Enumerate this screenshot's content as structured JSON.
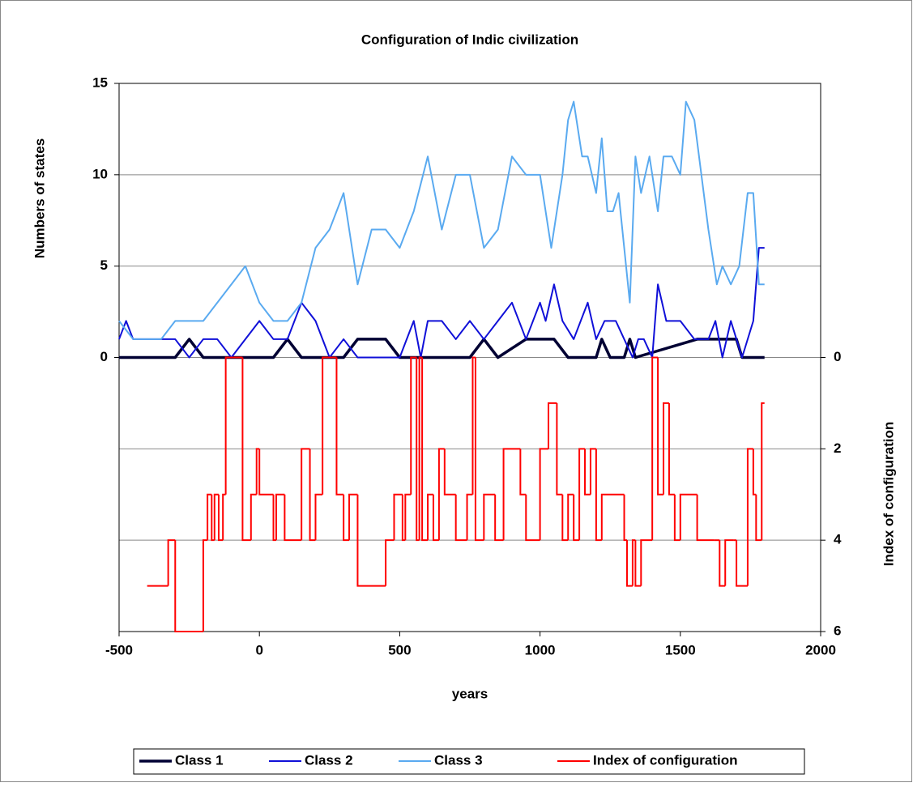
{
  "chart_data": {
    "type": "line",
    "title": "Configuration of Indic civilization",
    "x_label": "years",
    "y_label": "Numbers of states",
    "y2_label": "Index of configuration",
    "xlim": [
      -500,
      2000
    ],
    "xticks": [
      -500,
      0,
      500,
      1000,
      1500,
      2000
    ],
    "ylim": [
      -15,
      15
    ],
    "yticks": [
      0,
      5,
      10,
      15
    ],
    "y2lim": [
      6,
      -6
    ],
    "y2ticks": [
      0,
      2,
      4,
      6
    ],
    "grid": true,
    "legend": "bottom",
    "series": [
      {
        "name": "Class 1",
        "color": "#000033",
        "width": 3.5,
        "x": [
          -500,
          -300,
          -250,
          -200,
          50,
          100,
          150,
          300,
          350,
          450,
          500,
          750,
          800,
          850,
          950,
          1050,
          1100,
          1200,
          1220,
          1250,
          1300,
          1320,
          1340,
          1560,
          1700,
          1720,
          1800
        ],
        "values": [
          0,
          0,
          1,
          0,
          0,
          1,
          0,
          0,
          1,
          1,
          0,
          0,
          1,
          0,
          1,
          1,
          0,
          0,
          1,
          0,
          0,
          1,
          0,
          1,
          1,
          0,
          0
        ]
      },
      {
        "name": "Class 2",
        "color": "#1010d8",
        "width": 2,
        "x": [
          -500,
          -475,
          -450,
          -300,
          -250,
          -200,
          -150,
          -100,
          0,
          50,
          100,
          150,
          200,
          250,
          300,
          350,
          450,
          500,
          550,
          575,
          600,
          650,
          700,
          750,
          800,
          850,
          900,
          950,
          1000,
          1020,
          1050,
          1080,
          1120,
          1170,
          1200,
          1230,
          1270,
          1300,
          1330,
          1350,
          1370,
          1400,
          1420,
          1450,
          1500,
          1550,
          1600,
          1625,
          1650,
          1680,
          1700,
          1720,
          1760,
          1780,
          1800
        ],
        "values": [
          1,
          2,
          1,
          1,
          0,
          1,
          1,
          0,
          2,
          1,
          1,
          3,
          2,
          0,
          1,
          0,
          0,
          0,
          2,
          0,
          2,
          2,
          1,
          2,
          1,
          2,
          3,
          1,
          3,
          2,
          4,
          2,
          1,
          3,
          1,
          2,
          2,
          1,
          0,
          1,
          1,
          0,
          4,
          2,
          2,
          1,
          1,
          2,
          0,
          2,
          1,
          0,
          2,
          6,
          6
        ]
      },
      {
        "name": "Class 3",
        "color": "#5aaaf0",
        "width": 2,
        "x": [
          -500,
          -450,
          -350,
          -300,
          -200,
          -100,
          -50,
          0,
          50,
          100,
          150,
          200,
          250,
          300,
          350,
          400,
          450,
          500,
          550,
          600,
          650,
          700,
          750,
          800,
          850,
          900,
          950,
          1000,
          1040,
          1080,
          1100,
          1120,
          1150,
          1170,
          1200,
          1220,
          1240,
          1260,
          1280,
          1320,
          1340,
          1360,
          1390,
          1420,
          1440,
          1470,
          1500,
          1520,
          1550,
          1600,
          1630,
          1650,
          1680,
          1710,
          1740,
          1760,
          1780,
          1800
        ],
        "values": [
          2,
          1,
          1,
          2,
          2,
          4,
          5,
          3,
          2,
          2,
          3,
          6,
          7,
          9,
          4,
          7,
          7,
          6,
          8,
          11,
          7,
          10,
          10,
          6,
          7,
          11,
          10,
          10,
          6,
          10,
          13,
          14,
          11,
          11,
          9,
          12,
          8,
          8,
          9,
          3,
          11,
          9,
          11,
          8,
          11,
          11,
          10,
          14,
          13,
          7,
          4,
          5,
          4,
          5,
          9,
          9,
          4,
          4
        ]
      },
      {
        "name": "Index of configuration",
        "color": "#ff0000",
        "width": 2,
        "axis": "y2",
        "step": true,
        "x": [
          -400,
          -325,
          -300,
          -200,
          -185,
          -170,
          -160,
          -145,
          -130,
          -120,
          -60,
          -30,
          -10,
          0,
          50,
          60,
          90,
          150,
          180,
          200,
          225,
          275,
          300,
          320,
          350,
          450,
          480,
          510,
          520,
          540,
          560,
          570,
          580,
          600,
          620,
          640,
          660,
          700,
          740,
          760,
          770,
          800,
          840,
          870,
          930,
          950,
          1000,
          1030,
          1060,
          1080,
          1100,
          1120,
          1140,
          1160,
          1180,
          1200,
          1220,
          1300,
          1310,
          1330,
          1340,
          1360,
          1400,
          1420,
          1440,
          1460,
          1480,
          1500,
          1560,
          1620,
          1640,
          1660,
          1690,
          1700,
          1740,
          1760,
          1770,
          1790,
          1800
        ],
        "values": [
          5,
          4,
          6,
          4,
          3,
          4,
          3,
          4,
          3,
          0,
          4,
          3,
          2,
          3,
          4,
          3,
          4,
          2,
          4,
          3,
          0,
          3,
          4,
          3,
          5,
          4,
          3,
          4,
          3,
          0,
          4,
          0,
          4,
          3,
          4,
          2,
          3,
          4,
          3,
          0,
          4,
          3,
          4,
          2,
          3,
          4,
          2,
          1,
          3,
          4,
          3,
          4,
          2,
          3,
          2,
          4,
          3,
          4,
          5,
          4,
          5,
          4,
          0,
          3,
          1,
          3,
          4,
          3,
          4,
          4,
          5,
          4,
          4,
          5,
          2,
          3,
          4,
          1,
          1
        ]
      }
    ]
  }
}
